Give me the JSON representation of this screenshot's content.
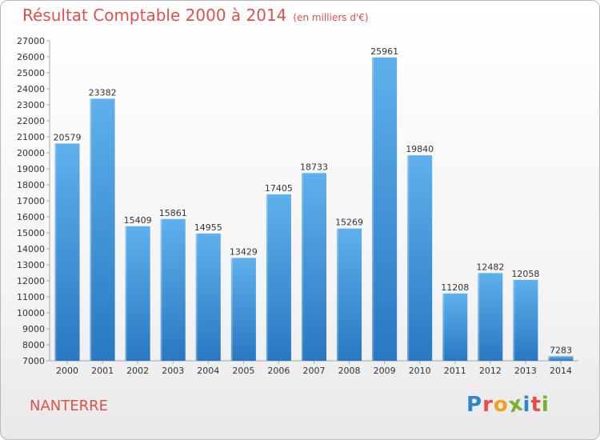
{
  "header": {
    "title": "Résultat Comptable 2000 à 2014",
    "subtitle": "(en milliers d'€)"
  },
  "footer": {
    "city": "NANTERRE",
    "logo": "Proxiti"
  },
  "colors": {
    "title": "#e0504a",
    "bar_top": "#5fb0ec",
    "bar_bottom": "#2878c2",
    "logo": [
      "#2e86c8",
      "#e0504a",
      "#f0a020",
      "#7ab030",
      "#2e86c8",
      "#e0504a",
      "#7ab030"
    ]
  },
  "chart_data": {
    "type": "bar",
    "title": "Résultat Comptable 2000 à 2014",
    "subtitle": "(en milliers d'€)",
    "xlabel": "",
    "ylabel": "",
    "categories": [
      "2000",
      "2001",
      "2002",
      "2003",
      "2004",
      "2005",
      "2006",
      "2007",
      "2008",
      "2009",
      "2010",
      "2011",
      "2012",
      "2013",
      "2014"
    ],
    "values": [
      20579,
      23382,
      15409,
      15861,
      14955,
      13429,
      17405,
      18733,
      15269,
      25961,
      19840,
      11208,
      12482,
      12058,
      7283
    ],
    "ylim": [
      7000,
      27000
    ],
    "yticks": [
      7000,
      8000,
      9000,
      10000,
      11000,
      12000,
      13000,
      14000,
      15000,
      16000,
      17000,
      18000,
      19000,
      20000,
      21000,
      22000,
      23000,
      24000,
      25000,
      26000,
      27000
    ],
    "grid": false,
    "data_labels": true
  }
}
